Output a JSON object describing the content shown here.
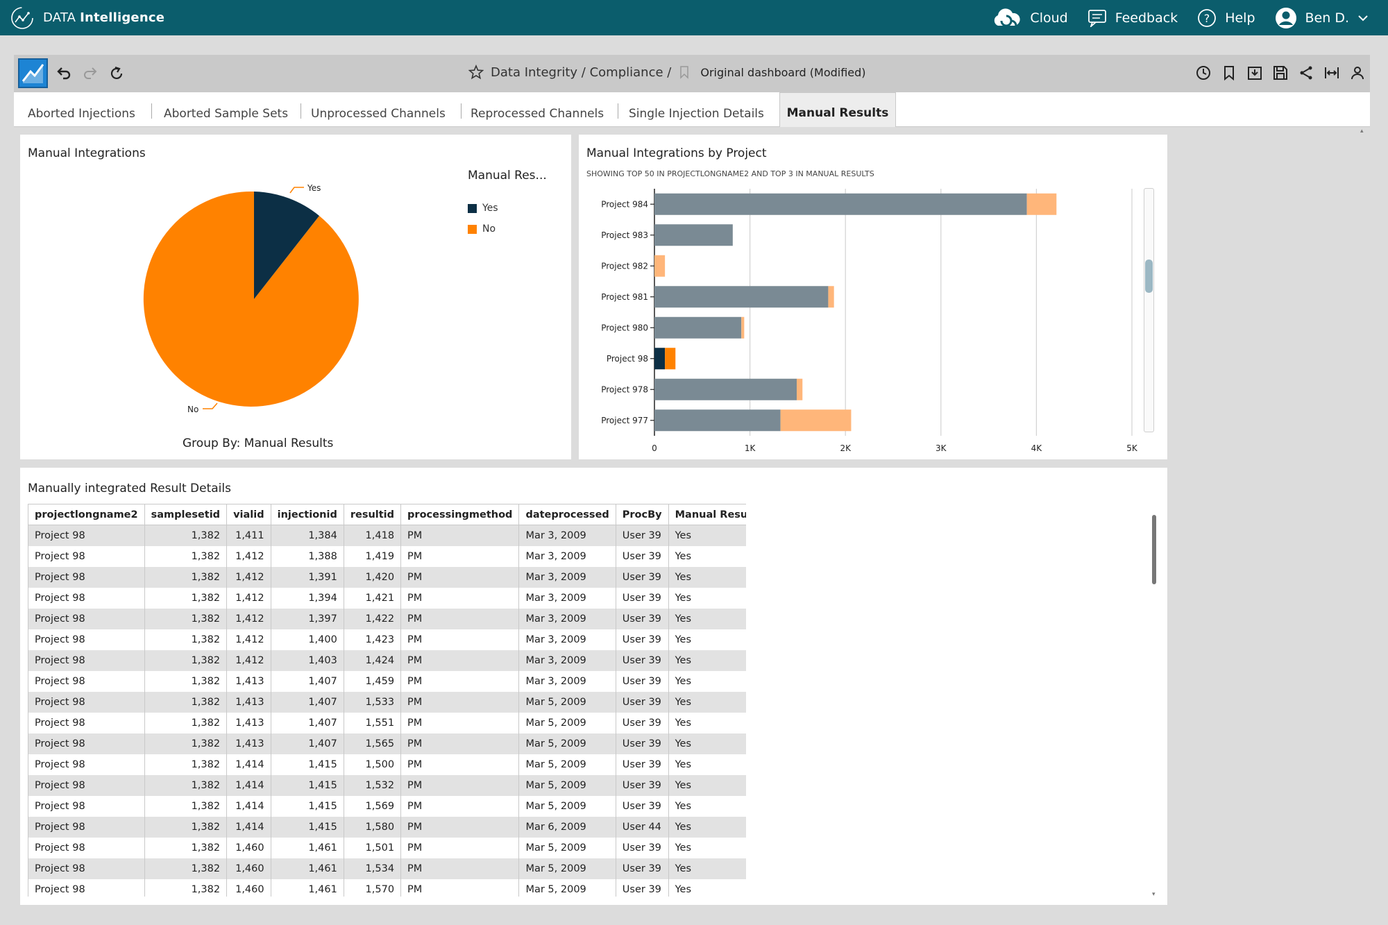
{
  "header": {
    "logo_text_light": "DATA",
    "logo_text_bold": "Intelligence",
    "cloud_label": "Cloud",
    "feedback_label": "Feedback",
    "help_label": "Help",
    "user_label": "Ben D."
  },
  "toolbar": {
    "breadcrumb_path": "Data Integrity / Compliance /",
    "dashboard_name": "Original dashboard (Modified)"
  },
  "tabs": [
    {
      "label": "Aborted Injections"
    },
    {
      "label": "Aborted Sample Sets"
    },
    {
      "label": "Unprocessed Channels"
    },
    {
      "label": "Reprocessed Channels"
    },
    {
      "label": "Single Injection Details"
    },
    {
      "label": "Manual Results"
    }
  ],
  "pie_panel": {
    "title": "Manual Integrations",
    "legend_title": "Manual Res...",
    "legend": [
      {
        "label": "Yes",
        "color": "#0c2f45"
      },
      {
        "label": "No",
        "color": "#ff8200"
      }
    ],
    "footer": "Group By: Manual Results"
  },
  "bar_panel": {
    "title": "Manual Integrations by Project",
    "subtitle": "SHOWING TOP 50 IN PROJECTLONGNAME2 AND TOP 3 IN MANUAL RESULTS"
  },
  "table_panel": {
    "title": "Manually integrated Result Details",
    "columns": [
      "projectlongname2",
      "samplesetid",
      "vialid",
      "injectionid",
      "resultid",
      "processingmethod",
      "dateprocessed",
      "ProcBy",
      "Manual Results"
    ],
    "rows": [
      [
        "Project 98",
        "1,382",
        "1,411",
        "1,384",
        "1,418",
        "PM",
        "Mar 3, 2009",
        "User 39",
        "Yes"
      ],
      [
        "Project 98",
        "1,382",
        "1,412",
        "1,388",
        "1,419",
        "PM",
        "Mar 3, 2009",
        "User 39",
        "Yes"
      ],
      [
        "Project 98",
        "1,382",
        "1,412",
        "1,391",
        "1,420",
        "PM",
        "Mar 3, 2009",
        "User 39",
        "Yes"
      ],
      [
        "Project 98",
        "1,382",
        "1,412",
        "1,394",
        "1,421",
        "PM",
        "Mar 3, 2009",
        "User 39",
        "Yes"
      ],
      [
        "Project 98",
        "1,382",
        "1,412",
        "1,397",
        "1,422",
        "PM",
        "Mar 3, 2009",
        "User 39",
        "Yes"
      ],
      [
        "Project 98",
        "1,382",
        "1,412",
        "1,400",
        "1,423",
        "PM",
        "Mar 3, 2009",
        "User 39",
        "Yes"
      ],
      [
        "Project 98",
        "1,382",
        "1,412",
        "1,403",
        "1,424",
        "PM",
        "Mar 3, 2009",
        "User 39",
        "Yes"
      ],
      [
        "Project 98",
        "1,382",
        "1,413",
        "1,407",
        "1,459",
        "PM",
        "Mar 3, 2009",
        "User 39",
        "Yes"
      ],
      [
        "Project 98",
        "1,382",
        "1,413",
        "1,407",
        "1,533",
        "PM",
        "Mar 5, 2009",
        "User 39",
        "Yes"
      ],
      [
        "Project 98",
        "1,382",
        "1,413",
        "1,407",
        "1,551",
        "PM",
        "Mar 5, 2009",
        "User 39",
        "Yes"
      ],
      [
        "Project 98",
        "1,382",
        "1,413",
        "1,407",
        "1,565",
        "PM",
        "Mar 5, 2009",
        "User 39",
        "Yes"
      ],
      [
        "Project 98",
        "1,382",
        "1,414",
        "1,415",
        "1,500",
        "PM",
        "Mar 5, 2009",
        "User 39",
        "Yes"
      ],
      [
        "Project 98",
        "1,382",
        "1,414",
        "1,415",
        "1,532",
        "PM",
        "Mar 5, 2009",
        "User 39",
        "Yes"
      ],
      [
        "Project 98",
        "1,382",
        "1,414",
        "1,415",
        "1,569",
        "PM",
        "Mar 5, 2009",
        "User 39",
        "Yes"
      ],
      [
        "Project 98",
        "1,382",
        "1,414",
        "1,415",
        "1,580",
        "PM",
        "Mar 6, 2009",
        "User 44",
        "Yes"
      ],
      [
        "Project 98",
        "1,382",
        "1,460",
        "1,461",
        "1,501",
        "PM",
        "Mar 5, 2009",
        "User 39",
        "Yes"
      ],
      [
        "Project 98",
        "1,382",
        "1,460",
        "1,461",
        "1,534",
        "PM",
        "Mar 5, 2009",
        "User 39",
        "Yes"
      ],
      [
        "Project 98",
        "1,382",
        "1,460",
        "1,461",
        "1,570",
        "PM",
        "Mar 5, 2009",
        "User 39",
        "Yes"
      ]
    ]
  },
  "colors": {
    "header_bg": "#0b5d6c",
    "yes": "#0c2f45",
    "no": "#ff8200",
    "bar_total": "#7a8a94",
    "bar_no": "#ffb67a"
  },
  "chart_data": [
    {
      "type": "pie",
      "labels": [
        "Yes",
        "No"
      ],
      "values": [
        10.5,
        89.5
      ],
      "title": "Manual Integrations",
      "legend_title": "Manual Res..."
    },
    {
      "type": "bar",
      "orientation": "horizontal",
      "stacked": true,
      "title": "Manual Integrations by Project",
      "subtitle": "SHOWING TOP 50 IN PROJECTLONGNAME2 AND TOP 3 IN MANUAL RESULTS",
      "categories": [
        "Project 984",
        "Project 983",
        "Project 982",
        "Project 981",
        "Project 980",
        "Project 98",
        "Project 978",
        "Project 977"
      ],
      "series": [
        {
          "color": "#7a8a94",
          "values": [
            3900,
            820,
            0,
            1820,
            910,
            0,
            1490,
            1320
          ]
        },
        {
          "color": "#0c2f45",
          "values": [
            0,
            0,
            0,
            0,
            0,
            110,
            0,
            0
          ]
        },
        {
          "color": "#ffb67a",
          "values": [
            310,
            0,
            110,
            60,
            30,
            0,
            60,
            740
          ]
        },
        {
          "color": "#ff8200",
          "values": [
            0,
            0,
            0,
            0,
            0,
            110,
            0,
            0
          ]
        }
      ],
      "x_ticks": [
        "0",
        "1K",
        "2K",
        "3K",
        "4K",
        "5K"
      ],
      "xlim": [
        0,
        5000
      ],
      "grid": true
    }
  ]
}
